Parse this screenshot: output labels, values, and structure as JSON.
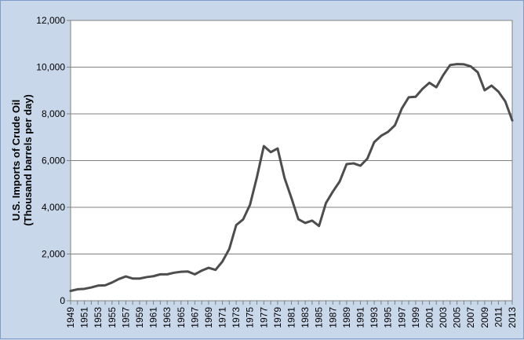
{
  "chart_data": {
    "type": "line",
    "title": "",
    "xlabel": "",
    "ylabel_lines": [
      "U.S. Imports of Crude Oil",
      "(Thousand barrels per day)"
    ],
    "ylim": [
      0,
      12000
    ],
    "yticks": [
      0,
      2000,
      4000,
      6000,
      8000,
      10000,
      12000
    ],
    "ytick_labels": [
      "0",
      "2,000",
      "4,000",
      "6,000",
      "8,000",
      "10,000",
      "12,000"
    ],
    "xlim": [
      1949,
      2013
    ],
    "xtick_labels": [
      "1949",
      "1951",
      "1953",
      "1955",
      "1957",
      "1959",
      "1961",
      "1963",
      "1965",
      "1967",
      "1969",
      "1971",
      "1973",
      "1975",
      "1977",
      "1979",
      "1981",
      "1983",
      "1985",
      "1987",
      "1989",
      "1991",
      "1993",
      "1995",
      "1997",
      "1999",
      "2001",
      "2003",
      "2005",
      "2007",
      "2009",
      "2011",
      "2013"
    ],
    "grid": true,
    "line_color": "#4d4d4d",
    "plot_background": "#ffffff",
    "figure_background": "#c9d7ea",
    "x": [
      1949,
      1950,
      1951,
      1952,
      1953,
      1954,
      1955,
      1956,
      1957,
      1958,
      1959,
      1960,
      1961,
      1962,
      1963,
      1964,
      1965,
      1966,
      1967,
      1968,
      1969,
      1970,
      1971,
      1972,
      1973,
      1974,
      1975,
      1976,
      1977,
      1978,
      1979,
      1980,
      1981,
      1982,
      1983,
      1984,
      1985,
      1986,
      1987,
      1988,
      1989,
      1990,
      1991,
      1992,
      1993,
      1994,
      1995,
      1996,
      1997,
      1998,
      1999,
      2000,
      2001,
      2002,
      2003,
      2004,
      2005,
      2006,
      2007,
      2008,
      2009,
      2010,
      2011,
      2012,
      2013
    ],
    "values": [
      420,
      490,
      510,
      570,
      650,
      660,
      780,
      930,
      1040,
      950,
      950,
      1010,
      1050,
      1130,
      1130,
      1200,
      1240,
      1250,
      1130,
      1290,
      1410,
      1320,
      1680,
      2220,
      3240,
      3480,
      4110,
      5290,
      6620,
      6360,
      6520,
      5260,
      4400,
      3490,
      3330,
      3430,
      3200,
      4180,
      4670,
      5110,
      5850,
      5880,
      5780,
      6080,
      6790,
      7060,
      7230,
      7510,
      8230,
      8710,
      8730,
      9070,
      9330,
      9140,
      9660,
      10090,
      10130,
      10120,
      10030,
      9780,
      9010,
      9210,
      8950,
      8530,
      7720
    ]
  }
}
